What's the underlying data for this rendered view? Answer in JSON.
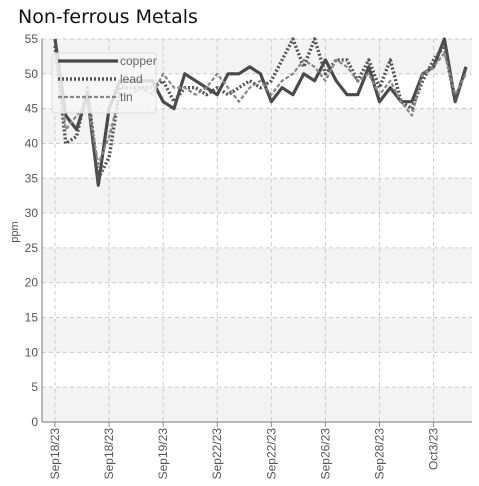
{
  "chart_data": {
    "type": "line",
    "title": "Non-ferrous Metals",
    "ylabel": "ppm",
    "xlabel": "",
    "ylim": [
      0,
      55
    ],
    "yticks": [
      0,
      5,
      10,
      15,
      20,
      25,
      30,
      35,
      40,
      45,
      50,
      55
    ],
    "x_tick_labels": [
      "Sep18/23",
      "Sep18/23",
      "Sep19/23",
      "Sep22/23",
      "Sep22/23",
      "Sep26/23",
      "Sep28/23",
      "Oct3/23"
    ],
    "grid": true,
    "legend_position": "top-left",
    "series": [
      {
        "name": "copper",
        "color": "#4a4a4a",
        "dash": "solid",
        "values": [
          55,
          44,
          42,
          47,
          34,
          45,
          49,
          49,
          49,
          49,
          46,
          45,
          50,
          49,
          48,
          47,
          50,
          50,
          51,
          50,
          46,
          48,
          47,
          50,
          49,
          52,
          49,
          47,
          47,
          51,
          46,
          48,
          46,
          46,
          50,
          51,
          55,
          46,
          51
        ]
      },
      {
        "name": "lead",
        "color": "#555555",
        "dash": "dotted",
        "values": [
          54,
          40,
          41,
          48,
          35,
          38,
          48,
          48,
          48,
          48,
          49,
          46,
          48,
          48,
          47,
          48,
          47,
          48,
          49,
          48,
          49,
          52,
          55,
          51,
          55,
          50,
          52,
          52,
          49,
          52,
          48,
          52,
          46,
          45,
          49,
          52,
          54,
          46,
          51
        ]
      },
      {
        "name": "tin",
        "color": "#888888",
        "dash": "dashed",
        "values": [
          53,
          42,
          44,
          46,
          37,
          41,
          47,
          47,
          48,
          47,
          50,
          48,
          48,
          47,
          48,
          50,
          48,
          46,
          48,
          49,
          47,
          49,
          50,
          52,
          51,
          49,
          52,
          51,
          49,
          50,
          47,
          49,
          46,
          44,
          50,
          51,
          53,
          47,
          50
        ]
      }
    ]
  }
}
